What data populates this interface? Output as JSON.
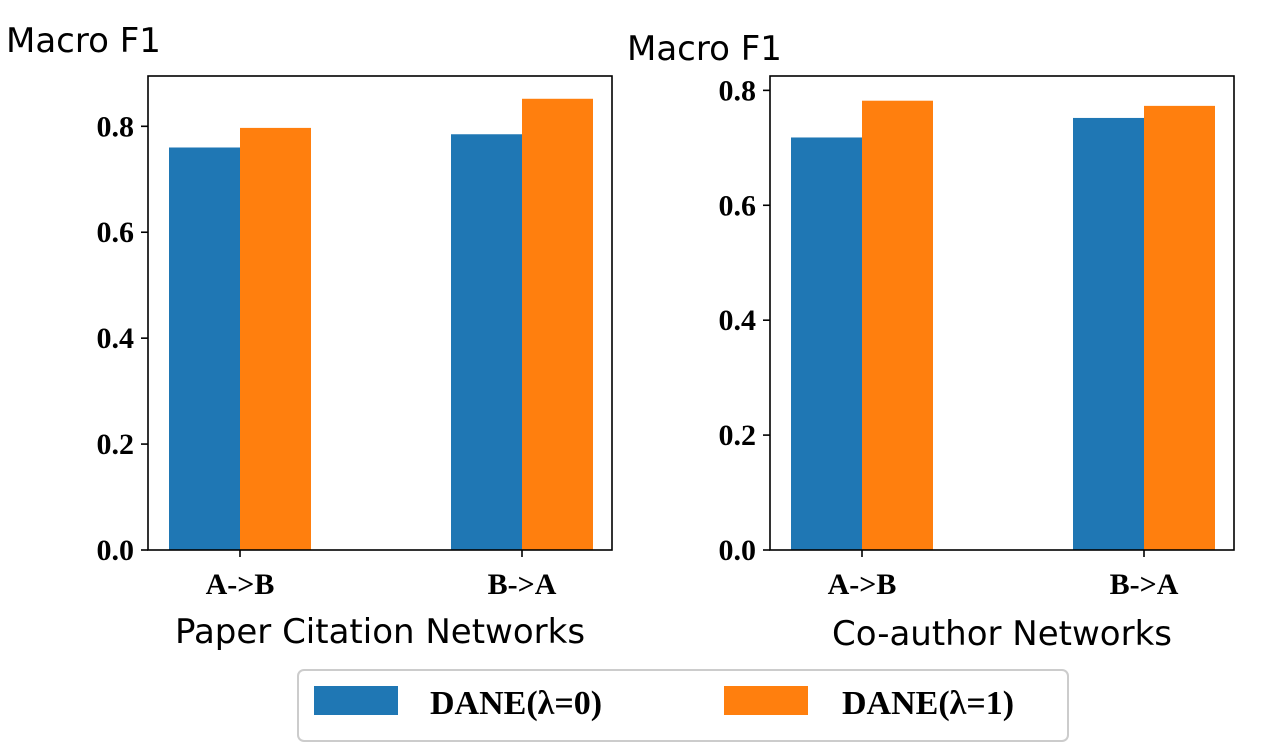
{
  "chart_data": [
    {
      "type": "bar",
      "categories": [
        "A->B",
        "B->A"
      ],
      "series": [
        {
          "name": "DANE(λ=0)",
          "values": [
            0.76,
            0.785
          ]
        },
        {
          "name": "DANE(λ=1)",
          "values": [
            0.797,
            0.852
          ]
        }
      ],
      "ylabel": "Macro F1",
      "xlabel": "Paper Citation Networks",
      "yticks": [
        "0.0",
        "0.2",
        "0.4",
        "0.6",
        "0.8"
      ],
      "ylim": [
        0,
        0.895
      ]
    },
    {
      "type": "bar",
      "categories": [
        "A->B",
        "B->A"
      ],
      "series": [
        {
          "name": "DANE(λ=0)",
          "values": [
            0.718,
            0.752
          ]
        },
        {
          "name": "DANE(λ=1)",
          "values": [
            0.782,
            0.773
          ]
        }
      ],
      "ylabel": "Macro F1",
      "xlabel": "Co-author Networks",
      "yticks": [
        "0.0",
        "0.2",
        "0.4",
        "0.6",
        "0.8"
      ],
      "ylim": [
        0,
        0.825
      ]
    }
  ],
  "legend": {
    "position": "bottom-center",
    "items": [
      {
        "label": "DANE(λ=0)",
        "color": "#1f77b4"
      },
      {
        "label": "DANE(λ=1)",
        "color": "#ff7f0e"
      }
    ]
  },
  "colors": [
    "#1f77b4",
    "#ff7f0e"
  ]
}
